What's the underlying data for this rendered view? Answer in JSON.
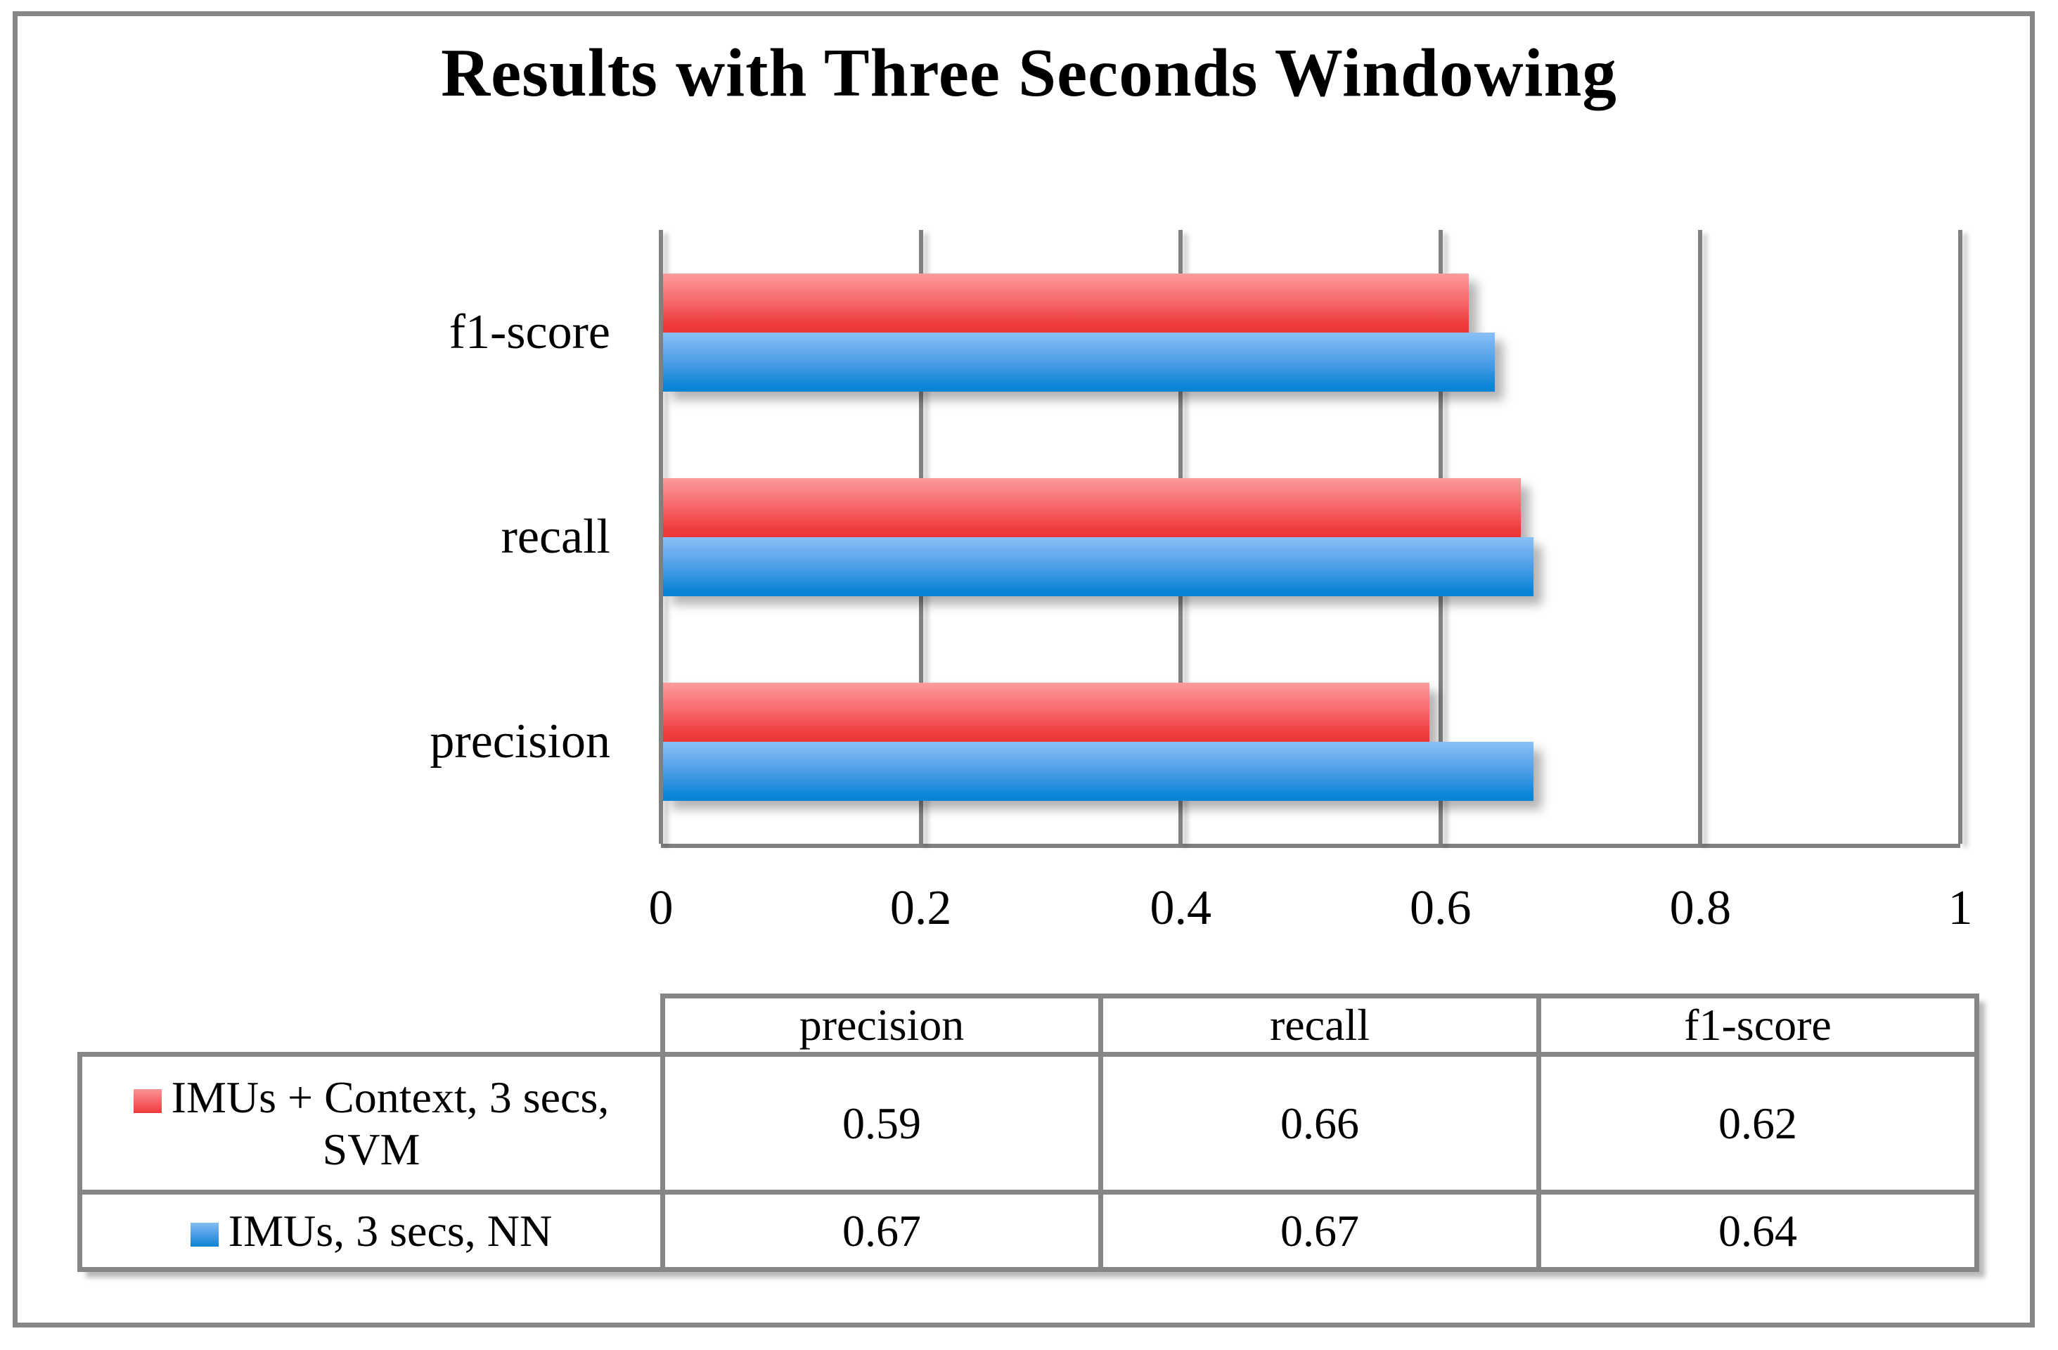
{
  "title": "Results with Three Seconds Windowing",
  "colors": {
    "grid_gray": "#818181",
    "border_gray": "#868686",
    "series_red_top": "#FC9B9D",
    "series_red_bottom": "#EE3A3B",
    "series_blue_top": "#8AC0F6",
    "series_blue_bottom": "#0A84D6"
  },
  "chart_data": {
    "type": "bar",
    "orientation": "horizontal",
    "title": "Results with Three Seconds Windowing",
    "categories": [
      "f1-score",
      "recall",
      "precision"
    ],
    "series": [
      {
        "name": "IMUs + Context, 3 secs, SVM",
        "color": "red",
        "values": {
          "f1-score": 0.62,
          "recall": 0.66,
          "precision": 0.59
        }
      },
      {
        "name": "IMUs, 3 secs, NN",
        "color": "blue",
        "values": {
          "f1-score": 0.64,
          "recall": 0.67,
          "precision": 0.67
        }
      }
    ],
    "xlabel": "",
    "ylabel": "",
    "xlim": [
      0,
      1
    ],
    "x_ticks": [
      "0",
      "0.2",
      "0.4",
      "0.6",
      "0.8",
      "1"
    ],
    "x_tick_values": [
      0,
      0.2,
      0.4,
      0.6,
      0.8,
      1
    ],
    "grid": "vertical-gridlines",
    "legend_position": "table-below"
  },
  "table": {
    "column_headers": [
      "precision",
      "recall",
      "f1-score"
    ],
    "rows": [
      {
        "label": "IMUs + Context, 3 secs, SVM",
        "label_lines": [
          "IMUs + Context, 3 secs,",
          "SVM"
        ],
        "marker": "red",
        "values": [
          "0.59",
          "0.66",
          "0.62"
        ]
      },
      {
        "label": "IMUs, 3 secs, NN",
        "label_lines": [
          "IMUs, 3 secs, NN"
        ],
        "marker": "blue",
        "values": [
          "0.67",
          "0.67",
          "0.64"
        ]
      }
    ]
  }
}
